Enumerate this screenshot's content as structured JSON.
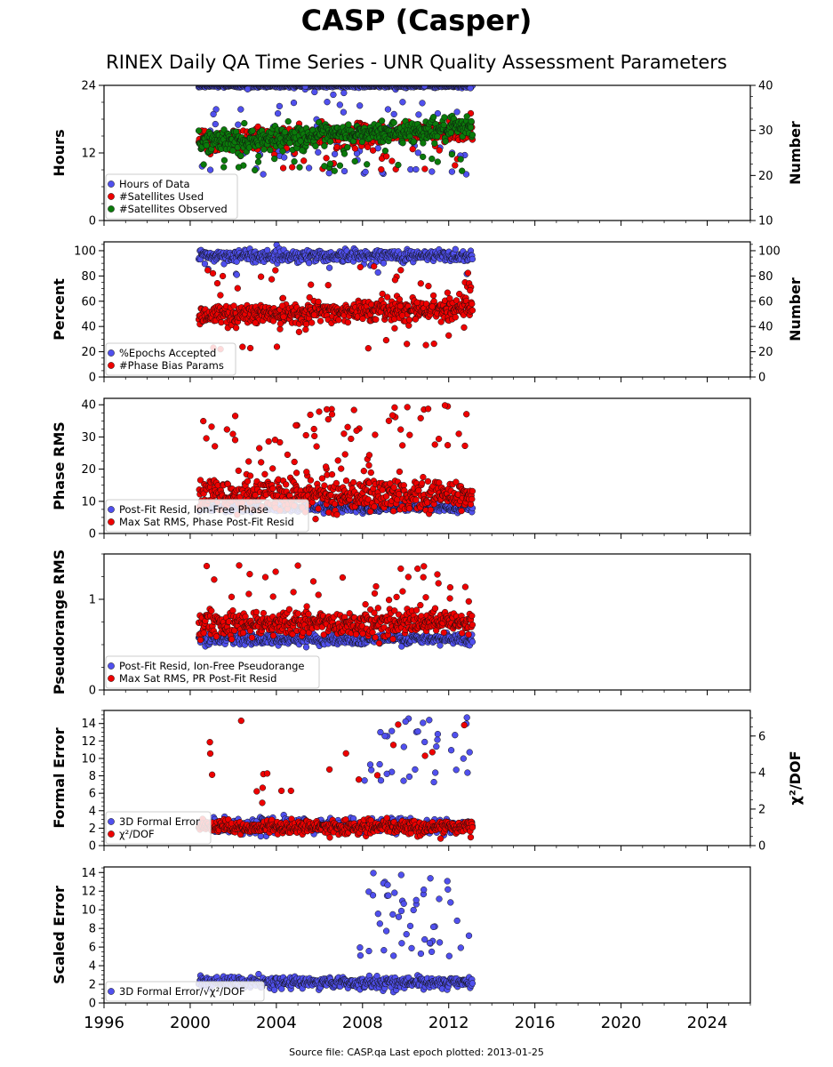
{
  "title": "CASP (Casper)",
  "subtitle": "RINEX Daily QA Time Series - UNR Quality Assessment Parameters",
  "source": "Source file: CASP.qa Last epoch plotted: 2013-01-25",
  "colors": {
    "blue": "#5050ee",
    "red": "#ee0000",
    "green": "#0a7a0a",
    "edge": "#111111"
  },
  "chart_data": [
    {
      "type": "scatter",
      "ylabel": "Hours",
      "y2label": "Number",
      "xlim": [
        1996,
        2026
      ],
      "ylim": [
        0,
        24
      ],
      "y2lim": [
        10,
        40
      ],
      "x_ticks": [
        1996,
        2000,
        2004,
        2008,
        2012,
        2016,
        2020,
        2024
      ],
      "y_ticks": [
        0,
        12,
        24
      ],
      "y2_ticks": [
        10,
        20,
        30,
        40
      ],
      "grid": false,
      "legend_position": "lower-left",
      "series": [
        {
          "name": "Hours of Data",
          "color": "blue",
          "axis": "left",
          "x_range": [
            2000.4,
            2013.1
          ],
          "y_mean": 23.9,
          "y_spread": 0.15,
          "outliers": {
            "n": 90,
            "y_range": [
              8,
              24
            ]
          }
        },
        {
          "name": "#Satellites Used",
          "color": "red",
          "axis": "right",
          "x_range": [
            2000.4,
            2013.1
          ],
          "y_mean": 28.8,
          "y_trend": 2.8,
          "y_spread": 1.2,
          "outliers": {
            "n": 25,
            "y_range": [
              21,
              26
            ]
          }
        },
        {
          "name": "#Satellites Observed",
          "color": "green",
          "axis": "right",
          "x_range": [
            2000.4,
            2013.1
          ],
          "y_mean": 29.0,
          "y_trend": 3.0,
          "y_spread": 1.2,
          "outliers": {
            "n": 30,
            "y_range": [
              21,
              26
            ]
          }
        }
      ]
    },
    {
      "type": "scatter",
      "ylabel": "Percent",
      "y2label": "Number",
      "xlim": [
        1996,
        2026
      ],
      "ylim": [
        0,
        107
      ],
      "y2lim": [
        0,
        107
      ],
      "x_ticks": [
        1996,
        2000,
        2004,
        2008,
        2012,
        2016,
        2020,
        2024
      ],
      "y_ticks": [
        0,
        20,
        40,
        60,
        80,
        100
      ],
      "y2_ticks": [
        0,
        20,
        40,
        60,
        80,
        100
      ],
      "grid": false,
      "legend_position": "lower-left",
      "series": [
        {
          "name": "%Epochs Accepted",
          "color": "blue",
          "axis": "left",
          "x_range": [
            2000.4,
            2013.1
          ],
          "y_mean": 96,
          "y_spread": 2.5,
          "outliers": {
            "n": 6,
            "y_range": [
              80,
              90
            ]
          }
        },
        {
          "name": "#Phase Bias Params",
          "color": "red",
          "axis": "right",
          "x_range": [
            2000.4,
            2013.1
          ],
          "y_mean": 52,
          "y_trend": 6,
          "y_spread": 4,
          "outliers": {
            "n": 60,
            "y_range": [
              22,
              90
            ]
          }
        }
      ]
    },
    {
      "type": "scatter",
      "ylabel": "Phase RMS",
      "xlim": [
        1996,
        2026
      ],
      "ylim": [
        0,
        42
      ],
      "x_ticks": [
        1996,
        2000,
        2004,
        2008,
        2012,
        2016,
        2020,
        2024
      ],
      "y_ticks": [
        0,
        10,
        20,
        30,
        40
      ],
      "grid": false,
      "legend_position": "lower-left",
      "series": [
        {
          "name": "Post-Fit Resid, Ion-Free Phase",
          "color": "blue",
          "axis": "left",
          "x_range": [
            2000.4,
            2013.1
          ],
          "y_mean": 8,
          "y_spread": 0.6
        },
        {
          "name": "Max Sat RMS, Phase Post-Fit Resid",
          "color": "red",
          "axis": "left",
          "x_range": [
            2000.4,
            2013.1
          ],
          "y_mean": 12,
          "y_spread": 2.5,
          "outliers": {
            "n": 70,
            "y_range": [
              18,
              40
            ]
          }
        }
      ]
    },
    {
      "type": "scatter",
      "ylabel": "Pseudorange RMS",
      "xlim": [
        1996,
        2026
      ],
      "ylim": [
        0,
        1.5
      ],
      "x_ticks": [
        1996,
        2000,
        2004,
        2008,
        2012,
        2016,
        2020,
        2024
      ],
      "y_ticks": [
        0,
        1
      ],
      "grid": false,
      "legend_position": "lower-left",
      "series": [
        {
          "name": "Post-Fit Resid, Ion-Free Pseudorange",
          "color": "blue",
          "axis": "left",
          "x_range": [
            2000.4,
            2013.1
          ],
          "y_mean": 0.56,
          "y_spread": 0.03
        },
        {
          "name": "Max Sat RMS, PR Post-Fit Resid",
          "color": "red",
          "axis": "left",
          "x_range": [
            2000.4,
            2013.1
          ],
          "y_mean": 0.74,
          "y_spread": 0.07,
          "outliers": {
            "n": 30,
            "y_range": [
              0.95,
              1.42
            ]
          }
        }
      ]
    },
    {
      "type": "scatter",
      "ylabel": "Formal Error",
      "y2label": "χ²/DOF",
      "xlim": [
        1996,
        2026
      ],
      "ylim": [
        0,
        15.5
      ],
      "y2lim": [
        0,
        7.4
      ],
      "x_ticks": [
        1996,
        2000,
        2004,
        2008,
        2012,
        2016,
        2020,
        2024
      ],
      "y_ticks": [
        0,
        2,
        4,
        6,
        8,
        10,
        12,
        14
      ],
      "y2_ticks": [
        0,
        2,
        4,
        6
      ],
      "grid": false,
      "legend_position": "lower-left",
      "series": [
        {
          "name": "3D Formal Error",
          "color": "blue",
          "axis": "left",
          "x_range": [
            2000.4,
            2013.1
          ],
          "y_mean": 2.3,
          "y_spread": 0.4,
          "outliers": {
            "n": 35,
            "y_range": [
              7,
              15
            ],
            "x_range": [
              2007.8,
              2013
            ]
          }
        },
        {
          "name": "χ²/DOF",
          "color": "red",
          "axis": "right",
          "x_range": [
            2000.4,
            2013.1
          ],
          "y_mean": 1.0,
          "y_spread": 0.18,
          "outliers": {
            "n": 20,
            "y_range": [
              1.8,
              7.0
            ]
          }
        }
      ]
    },
    {
      "type": "scatter",
      "ylabel": "Scaled Error",
      "xlim": [
        1996,
        2026
      ],
      "ylim": [
        0,
        14.6
      ],
      "x_ticks": [
        1996,
        2000,
        2004,
        2008,
        2012,
        2016,
        2020,
        2024
      ],
      "y_ticks": [
        0,
        2,
        4,
        6,
        8,
        10,
        12,
        14
      ],
      "grid": false,
      "legend_position": "lower-left",
      "series": [
        {
          "name": "3D Formal Error/√χ²/DOF",
          "color": "blue",
          "axis": "left",
          "x_range": [
            2000.4,
            2013.1
          ],
          "y_mean": 2.2,
          "y_spread": 0.3,
          "outliers": {
            "n": 50,
            "y_range": [
              5,
              14
            ],
            "x_range": [
              2007.8,
              2013
            ]
          }
        }
      ]
    }
  ]
}
